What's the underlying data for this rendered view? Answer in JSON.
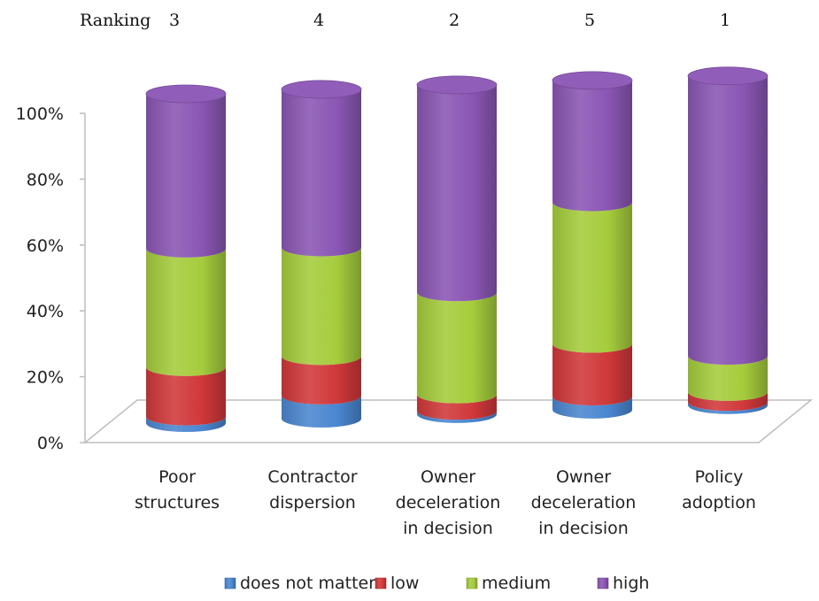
{
  "ranking": {
    "label": "Ranking",
    "values": [
      "3",
      "4",
      "2",
      "5",
      "1"
    ]
  },
  "chart_data": {
    "type": "bar",
    "stacked": "percent",
    "three_d": true,
    "shape": "cylinder",
    "categories": [
      [
        "Poor",
        "structures"
      ],
      [
        "Contractor",
        "dispersion"
      ],
      [
        "Owner",
        "deceleration",
        "in decision"
      ],
      [
        "Owner",
        "deceleration",
        "in decision"
      ],
      [
        "Policy",
        "adoption"
      ]
    ],
    "series": [
      {
        "name": "does not matter",
        "color": "#4a86d0",
        "values": [
          2,
          7,
          1,
          4,
          1
        ]
      },
      {
        "name": "low",
        "color": "#d0383a",
        "values": [
          15,
          12,
          5,
          16,
          3
        ]
      },
      {
        "name": "medium",
        "color": "#a5cc3c",
        "values": [
          36,
          33,
          31,
          43,
          11
        ]
      },
      {
        "name": "high",
        "color": "#8a56b4",
        "values": [
          47,
          48,
          63,
          37,
          85
        ]
      }
    ],
    "y_ticks": [
      "0%",
      "20%",
      "40%",
      "60%",
      "80%",
      "100%"
    ],
    "ylim": [
      0,
      100
    ],
    "grid": false,
    "legend": "bottom"
  }
}
